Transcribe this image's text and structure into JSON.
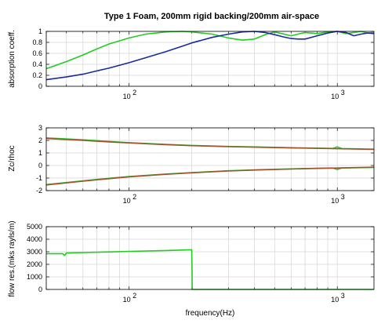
{
  "chart_data": [
    {
      "type": "line",
      "title": "Type 1 Foam, 200mm rigid backing/200mm air-space",
      "xlabel": "",
      "ylabel": "absorption coeff.",
      "xscale": "log",
      "xlim": [
        40,
        1500
      ],
      "ylim": [
        0,
        1
      ],
      "yticks": [
        0,
        0.2,
        0.4,
        0.6,
        0.8,
        1
      ],
      "ytick_labels": [
        "0",
        "0.2",
        "0.4",
        "0.6",
        "0.8",
        "1"
      ],
      "xtick_labels": [
        {
          "base": "10",
          "exp": "2"
        },
        {
          "base": "10",
          "exp": "3"
        }
      ],
      "grid": true,
      "series": [
        {
          "color": "#22cc22",
          "x": [
            40,
            50,
            60,
            70,
            80,
            100,
            120,
            150,
            180,
            200,
            250,
            300,
            350,
            400,
            450,
            500,
            600,
            700,
            800,
            900,
            1000,
            1100,
            1200,
            1300,
            1400,
            1500
          ],
          "y": [
            0.32,
            0.45,
            0.57,
            0.68,
            0.77,
            0.88,
            0.95,
            0.99,
            1.0,
            0.99,
            0.95,
            0.88,
            0.84,
            0.86,
            0.94,
            0.99,
            0.92,
            0.98,
            0.96,
            0.99,
            1.0,
            0.96,
            0.98,
            1.0,
            0.97,
            0.98
          ]
        },
        {
          "color": "#1a2a9c",
          "x": [
            40,
            50,
            60,
            70,
            80,
            100,
            120,
            150,
            180,
            200,
            250,
            300,
            350,
            400,
            450,
            500,
            550,
            600,
            650,
            700,
            800,
            900,
            1000,
            1100,
            1200,
            1300,
            1400,
            1500
          ],
          "y": [
            0.12,
            0.17,
            0.22,
            0.28,
            0.33,
            0.43,
            0.52,
            0.63,
            0.73,
            0.79,
            0.89,
            0.95,
            0.99,
            1.0,
            0.98,
            0.94,
            0.9,
            0.87,
            0.86,
            0.86,
            0.92,
            0.97,
            1.0,
            0.98,
            0.92,
            0.95,
            0.97,
            0.96
          ]
        }
      ]
    },
    {
      "type": "line",
      "title": "",
      "xlabel": "",
      "ylabel": "Zc/rhoc",
      "xscale": "log",
      "xlim": [
        40,
        1500
      ],
      "ylim": [
        -2,
        3
      ],
      "yticks": [
        -2,
        -1,
        0,
        1,
        2,
        3
      ],
      "ytick_labels": [
        "-2",
        "-1",
        "0",
        "1",
        "2",
        "3"
      ],
      "xtick_labels": [
        {
          "base": "10",
          "exp": "2"
        },
        {
          "base": "10",
          "exp": "3"
        }
      ],
      "grid": true,
      "series": [
        {
          "color": "#22cc22",
          "x": [
            40,
            60,
            80,
            100,
            150,
            200,
            300,
            400,
            600,
            800,
            950,
            1000,
            1050,
            1200,
            1500
          ],
          "y": [
            2.2,
            2.05,
            1.92,
            1.82,
            1.68,
            1.6,
            1.52,
            1.48,
            1.42,
            1.38,
            1.36,
            1.48,
            1.35,
            1.33,
            1.3
          ]
        },
        {
          "color": "#22cc22",
          "x": [
            40,
            60,
            80,
            100,
            150,
            200,
            300,
            400,
            600,
            800,
            950,
            1000,
            1050,
            1200,
            1500
          ],
          "y": [
            -1.52,
            -1.22,
            -1.02,
            -0.88,
            -0.68,
            -0.56,
            -0.42,
            -0.35,
            -0.27,
            -0.22,
            -0.2,
            -0.32,
            -0.2,
            -0.18,
            -0.15
          ]
        },
        {
          "color": "#a0522d",
          "x": [
            40,
            60,
            80,
            100,
            150,
            200,
            300,
            400,
            600,
            800,
            1000,
            1200,
            1500
          ],
          "y": [
            2.15,
            2.0,
            1.88,
            1.8,
            1.66,
            1.58,
            1.5,
            1.46,
            1.4,
            1.37,
            1.34,
            1.32,
            1.28
          ]
        },
        {
          "color": "#a0522d",
          "x": [
            40,
            60,
            80,
            100,
            150,
            200,
            300,
            400,
            600,
            800,
            1000,
            1200,
            1500
          ],
          "y": [
            -1.55,
            -1.25,
            -1.05,
            -0.9,
            -0.7,
            -0.58,
            -0.44,
            -0.36,
            -0.28,
            -0.23,
            -0.2,
            -0.17,
            -0.14
          ]
        }
      ]
    },
    {
      "type": "line",
      "title": "",
      "xlabel": "frequency(Hz)",
      "ylabel": "flow res.(mks rayls/m)",
      "xscale": "log",
      "xlim": [
        40,
        1500
      ],
      "ylim": [
        0,
        5000
      ],
      "yticks": [
        0,
        1000,
        2000,
        3000,
        4000,
        5000
      ],
      "ytick_labels": [
        "0",
        "1000",
        "2000",
        "3000",
        "4000",
        "5000"
      ],
      "xtick_labels": [
        {
          "base": "10",
          "exp": "2"
        },
        {
          "base": "10",
          "exp": "3"
        }
      ],
      "grid": true,
      "series": [
        {
          "color": "#22cc22",
          "x": [
            40,
            48,
            49,
            50,
            60,
            80,
            100,
            150,
            199,
            200,
            201,
            300,
            500,
            1000,
            1500
          ],
          "y": [
            2850,
            2850,
            2700,
            2900,
            2940,
            2990,
            3030,
            3100,
            3160,
            3160,
            0,
            0,
            0,
            0,
            0
          ]
        }
      ]
    }
  ]
}
